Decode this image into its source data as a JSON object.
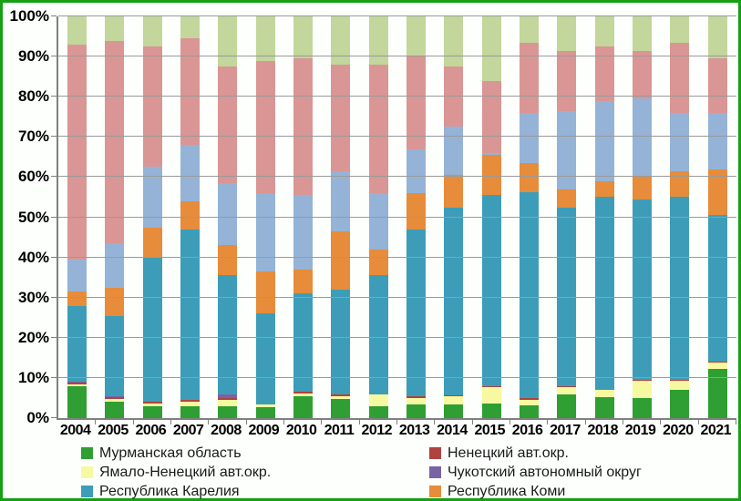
{
  "chart_data": {
    "type": "bar",
    "variant": "stacked-100-percent",
    "title": "",
    "xlabel": "",
    "ylabel": "",
    "ylim": [
      0,
      100
    ],
    "grid": true,
    "legend_position": "bottom",
    "y_tick_labels": [
      "100%",
      "90%",
      "80%",
      "70%",
      "60%",
      "50%",
      "40%",
      "30%",
      "20%",
      "10%",
      "0%"
    ],
    "categories": [
      "2004",
      "2005",
      "2006",
      "2007",
      "2008",
      "2009",
      "2010",
      "2011",
      "2012",
      "2013",
      "2014",
      "2015",
      "2016",
      "2017",
      "2018",
      "2019",
      "2020",
      "2021"
    ],
    "series_note": "series listed bottom-to-top of stack; values are percent of yearly total; last three series have no legend entry visible in the image",
    "series": [
      {
        "name": "Мурманская область",
        "color": "#2F9E33",
        "values": [
          8.0,
          4.0,
          3.0,
          3.0,
          3.0,
          2.7,
          5.5,
          4.7,
          3.0,
          3.3,
          3.3,
          3.6,
          3.1,
          6.0,
          5.3,
          4.9,
          7.0,
          12.3
        ]
      },
      {
        "name": "Ямало-Ненецкий авт.окр.",
        "color": "#F7F9A0",
        "values": [
          0.5,
          0.7,
          0.7,
          1.2,
          1.5,
          0.8,
          0.7,
          0.8,
          2.8,
          1.8,
          2.2,
          4.1,
          1.5,
          1.7,
          1.7,
          4.4,
          2.4,
          1.5
        ]
      },
      {
        "name": "Ненецкий авт.окр.",
        "color": "#AF4340",
        "values": [
          0.3,
          0.5,
          0.3,
          0.3,
          0.5,
          0.0,
          0.3,
          0.5,
          0.2,
          0.4,
          0.2,
          0.3,
          0.4,
          0.3,
          0.0,
          0.2,
          0.1,
          0.2
        ]
      },
      {
        "name": "Чукотский автономный округ",
        "color": "#7A63A5",
        "values": [
          0.2,
          0.3,
          0.0,
          0.0,
          1.0,
          0.0,
          0.0,
          0.0,
          0.0,
          0.0,
          0.0,
          0.0,
          0.0,
          0.0,
          0.0,
          0.0,
          0.0,
          0.0
        ]
      },
      {
        "name": "Республика Карелия",
        "color": "#3D9DB8",
        "values": [
          19.0,
          20.0,
          36.0,
          42.5,
          29.5,
          22.5,
          24.5,
          26.0,
          29.5,
          41.5,
          46.8,
          47.5,
          51.3,
          44.5,
          48.0,
          45.0,
          45.5,
          36.5
        ]
      },
      {
        "name": "Республика Коми",
        "color": "#E68C3A",
        "values": [
          3.5,
          7.0,
          7.5,
          7.0,
          7.5,
          10.5,
          6.0,
          14.5,
          6.5,
          9.0,
          8.0,
          10.0,
          7.2,
          4.5,
          4.0,
          5.5,
          6.5,
          11.5
        ]
      },
      {
        "name": "",
        "color": "#95B3D7",
        "values": [
          8.0,
          11.0,
          15.0,
          14.0,
          15.5,
          19.5,
          18.5,
          15.0,
          14.0,
          11.0,
          12.0,
          0.5,
          12.5,
          19.5,
          20.0,
          19.5,
          14.5,
          14.0
        ]
      },
      {
        "name": "",
        "color": "#D99694",
        "values": [
          53.5,
          50.5,
          30.0,
          26.5,
          29.0,
          33.0,
          34.0,
          26.5,
          32.0,
          23.0,
          15.0,
          18.0,
          17.5,
          15.0,
          13.5,
          12.0,
          17.5,
          13.5
        ]
      },
      {
        "name": "",
        "color": "#C3D69B",
        "values": [
          7.0,
          6.0,
          7.5,
          5.5,
          12.5,
          11.0,
          10.5,
          12.0,
          12.0,
          10.0,
          12.5,
          16.0,
          6.5,
          8.5,
          7.5,
          8.5,
          6.5,
          10.5
        ]
      }
    ]
  },
  "legend": {
    "columns": [
      [
        {
          "label": "Мурманская область",
          "color": "#2F9E33"
        },
        {
          "label": "Ямало-Ненецкий авт.окр.",
          "color": "#F7F9A0"
        },
        {
          "label": "Республика Карелия",
          "color": "#3D9DB8"
        }
      ],
      [
        {
          "label": "Ненецкий авт.окр.",
          "color": "#AF4340"
        },
        {
          "label": "Чукотский автономный округ",
          "color": "#7A63A5"
        },
        {
          "label": "Республика Коми",
          "color": "#E68C3A"
        }
      ]
    ]
  },
  "frame": {
    "border_color": "#15A015"
  }
}
